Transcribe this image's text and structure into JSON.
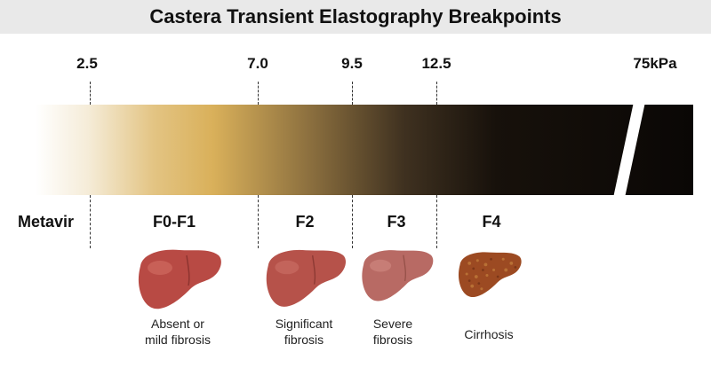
{
  "title": "Castera Transient Elastography Breakpoints",
  "breakpoints": [
    "2.5",
    "7.0",
    "9.5",
    "12.5",
    "75kPa"
  ],
  "scale_label": "Metavir",
  "stages": [
    {
      "label": "F0-F1",
      "description_line1": "Absent or",
      "description_line2": "mild fibrosis"
    },
    {
      "label": "F2",
      "description_line1": "Significant",
      "description_line2": "fibrosis"
    },
    {
      "label": "F3",
      "description_line1": "Severe",
      "description_line2": "fibrosis"
    },
    {
      "label": "F4",
      "description_line1": "Cirrhosis",
      "description_line2": ""
    }
  ],
  "colors": {
    "gradient_start": "#ffffff",
    "gradient_gold": "#d9b05a",
    "gradient_end": "#0a0705",
    "liver_healthy": "#b84a44",
    "liver_severe": "#b86a64",
    "liver_cirrhotic": "#9c4a22"
  }
}
